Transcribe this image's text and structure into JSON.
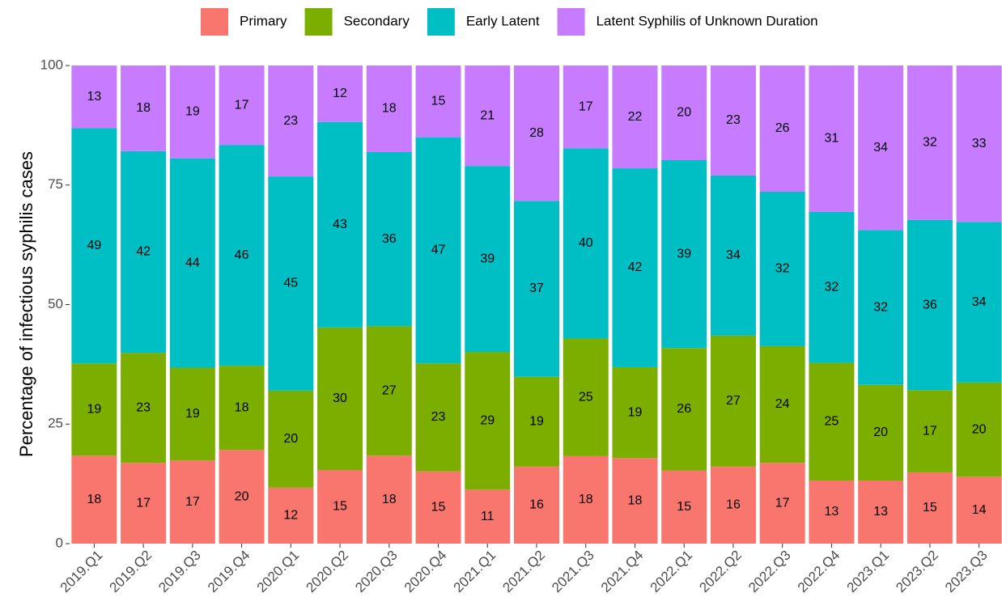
{
  "chart_data": {
    "type": "stacked_bar",
    "ylabel": "Percentage of infectious syphilis cases",
    "categories": [
      "2019.Q1",
      "2019.Q2",
      "2019.Q3",
      "2019.Q4",
      "2020.Q1",
      "2020.Q2",
      "2020.Q3",
      "2020.Q4",
      "2021.Q1",
      "2021.Q2",
      "2021.Q3",
      "2021.Q4",
      "2022.Q1",
      "2022.Q2",
      "2022.Q3",
      "2022.Q4",
      "2023.Q1",
      "2023.Q2",
      "2023.Q3"
    ],
    "series": [
      {
        "name": "Primary",
        "color": "#f8766d",
        "values": [
          18.4,
          16.9,
          17.4,
          19.6,
          11.7,
          15.4,
          18.4,
          15.1,
          11.3,
          16.1,
          18.3,
          17.9,
          15.3,
          16.1,
          16.9,
          13.2,
          13.2,
          14.9,
          14.0
        ],
        "value_labels": [
          "18",
          "17",
          "17",
          "20",
          "12",
          "15",
          "18",
          "15",
          "11",
          "16",
          "18",
          "18",
          "15",
          "16",
          "17",
          "13",
          "13",
          "15",
          "14"
        ]
      },
      {
        "name": "Secondary",
        "color": "#7cae00",
        "values": [
          19.3,
          23.0,
          19.4,
          17.6,
          20.3,
          29.8,
          27.1,
          22.6,
          28.8,
          18.8,
          24.6,
          19.0,
          25.6,
          27.4,
          24.4,
          24.6,
          20.0,
          17.2,
          19.7
        ],
        "value_labels": [
          "19",
          "23",
          "19",
          "18",
          "20",
          "30",
          "27",
          "23",
          "29",
          "19",
          "25",
          "19",
          "26",
          "27",
          "24",
          "25",
          "20",
          "17",
          "20"
        ]
      },
      {
        "name": "Early Latent",
        "color": "#00bfc4",
        "values": [
          49.2,
          42.2,
          43.8,
          46.2,
          44.8,
          43.0,
          36.4,
          47.3,
          38.9,
          36.8,
          39.8,
          41.6,
          39.3,
          33.5,
          32.3,
          31.6,
          32.4,
          35.6,
          33.6
        ],
        "value_labels": [
          "49",
          "42",
          "44",
          "46",
          "45",
          "43",
          "36",
          "47",
          "39",
          "37",
          "40",
          "42",
          "39",
          "34",
          "32",
          "32",
          "32",
          "36",
          "34"
        ]
      },
      {
        "name": "Latent Syphilis of Unknown Duration",
        "color": "#c77cff",
        "values": [
          13.1,
          17.9,
          19.4,
          16.6,
          23.2,
          11.8,
          18.1,
          15.0,
          21.0,
          28.3,
          17.3,
          21.5,
          19.8,
          23.0,
          26.4,
          30.6,
          34.4,
          32.3,
          32.7
        ],
        "value_labels": [
          "13",
          "18",
          "19",
          "17",
          "23",
          "12",
          "18",
          "15",
          "21",
          "28",
          "17",
          "22",
          "20",
          "23",
          "26",
          "31",
          "34",
          "32",
          "33"
        ]
      }
    ],
    "ylim": [
      0,
      100
    ],
    "yticks": [
      0,
      25,
      50,
      75,
      100
    ],
    "legend": "top"
  }
}
